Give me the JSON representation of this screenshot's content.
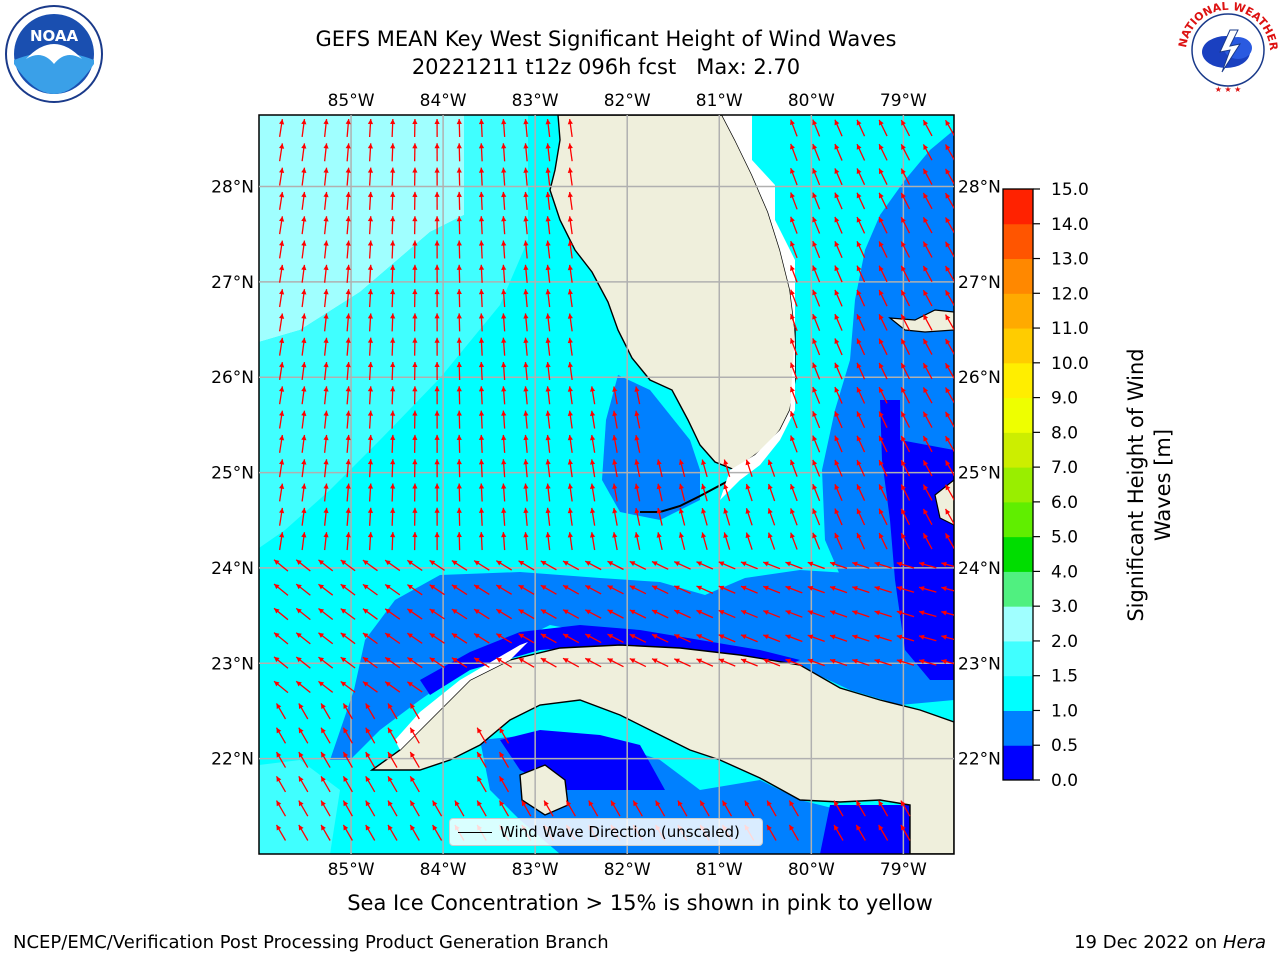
{
  "title": {
    "line1": "GEFS MEAN Key West Significant Height of Wind Waves",
    "line2": "20221211 t12z 096h fcst   Max: 2.70"
  },
  "map": {
    "lon_labels": [
      "85°W",
      "84°W",
      "83°W",
      "82°W",
      "81°W",
      "80°W",
      "79°W"
    ],
    "lat_labels": [
      "28°N",
      "27°N",
      "26°N",
      "25°N",
      "24°N",
      "23°N",
      "22°N"
    ],
    "lon_values": [
      -85,
      -84,
      -83,
      -82,
      -81,
      -80,
      -79
    ],
    "lat_values": [
      28,
      27,
      26,
      25,
      24,
      23,
      22
    ],
    "lon_range": [
      -86,
      -78.45
    ],
    "lat_range": [
      21.0,
      28.75
    ],
    "land_color": "#efefdc",
    "arrow_color": "#ff0000",
    "grid_color": "#b0b0b0"
  },
  "colorbar": {
    "title": "Significant Height of Wind Waves [m]",
    "tick_labels": [
      "0.0",
      "0.5",
      "1.0",
      "1.5",
      "2.0",
      "3.0",
      "4.0",
      "5.0",
      "6.0",
      "7.0",
      "8.0",
      "9.0",
      "10.0",
      "11.0",
      "12.0",
      "13.0",
      "14.0",
      "15.0"
    ],
    "colors": [
      "#0000ff",
      "#0080ff",
      "#00ffff",
      "#40ffff",
      "#a0ffff",
      "#50f080",
      "#00dd00",
      "#60ee00",
      "#99ee00",
      "#ccee00",
      "#eeff00",
      "#ffee00",
      "#ffcc00",
      "#ffaa00",
      "#ff8800",
      "#ff5500",
      "#ff2200",
      "#ff0000"
    ]
  },
  "legend": {
    "label": "Wind Wave Direction (unscaled)"
  },
  "subtitle": "Sea Ice Concentration > 15% is shown in pink to yellow",
  "footer": {
    "left": "NCEP/EMC/Verification Post Processing Product Generation Branch",
    "right_prefix": "19 Dec 2022 on ",
    "right_host": "Hera"
  },
  "logos": {
    "noaa": "NOAA",
    "nws": "NATIONAL WEATHER SERVICE"
  }
}
